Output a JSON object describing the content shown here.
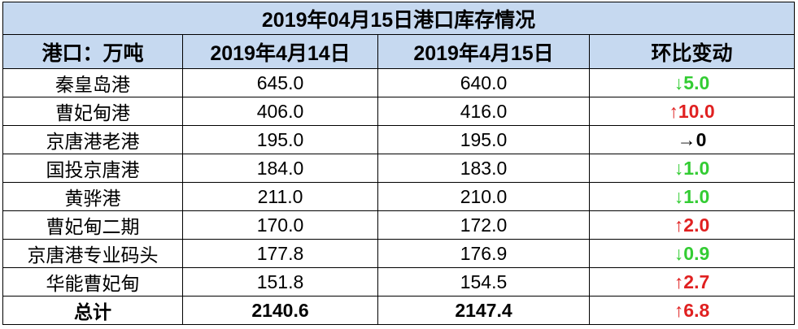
{
  "table": {
    "title": "2019年04月15日港口库存情况",
    "header": [
      "港口：万吨",
      "2019年4月14日",
      "2019年4月15日",
      "环比变动"
    ],
    "rows": [
      [
        "秦皇岛港",
        "645.0",
        "640.0",
        "↓5.0"
      ],
      [
        "曹妃甸港",
        "406.0",
        "416.0",
        "↑10.0"
      ],
      [
        "京唐港老港",
        "195.0",
        "195.0",
        "→0"
      ],
      [
        "国投京唐港",
        "184.0",
        "183.0",
        "↓1.0"
      ],
      [
        "黄骅港",
        "211.0",
        "210.0",
        "↓1.0"
      ],
      [
        "曹妃甸二期",
        "170.0",
        "172.0",
        "↑2.0"
      ],
      [
        "京唐港专业码头",
        "177.8",
        "176.9",
        "↓0.9"
      ],
      [
        "华能曹妃甸",
        "151.8",
        "154.5",
        "↑2.7"
      ],
      [
        "总计",
        "2140.6",
        "2147.4",
        "↑6.8"
      ]
    ],
    "change_colors": [
      "#33cc33",
      "#e02020",
      "#000000",
      "#33cc33",
      "#33cc33",
      "#e02020",
      "#33cc33",
      "#e02020",
      "#e02020"
    ]
  }
}
